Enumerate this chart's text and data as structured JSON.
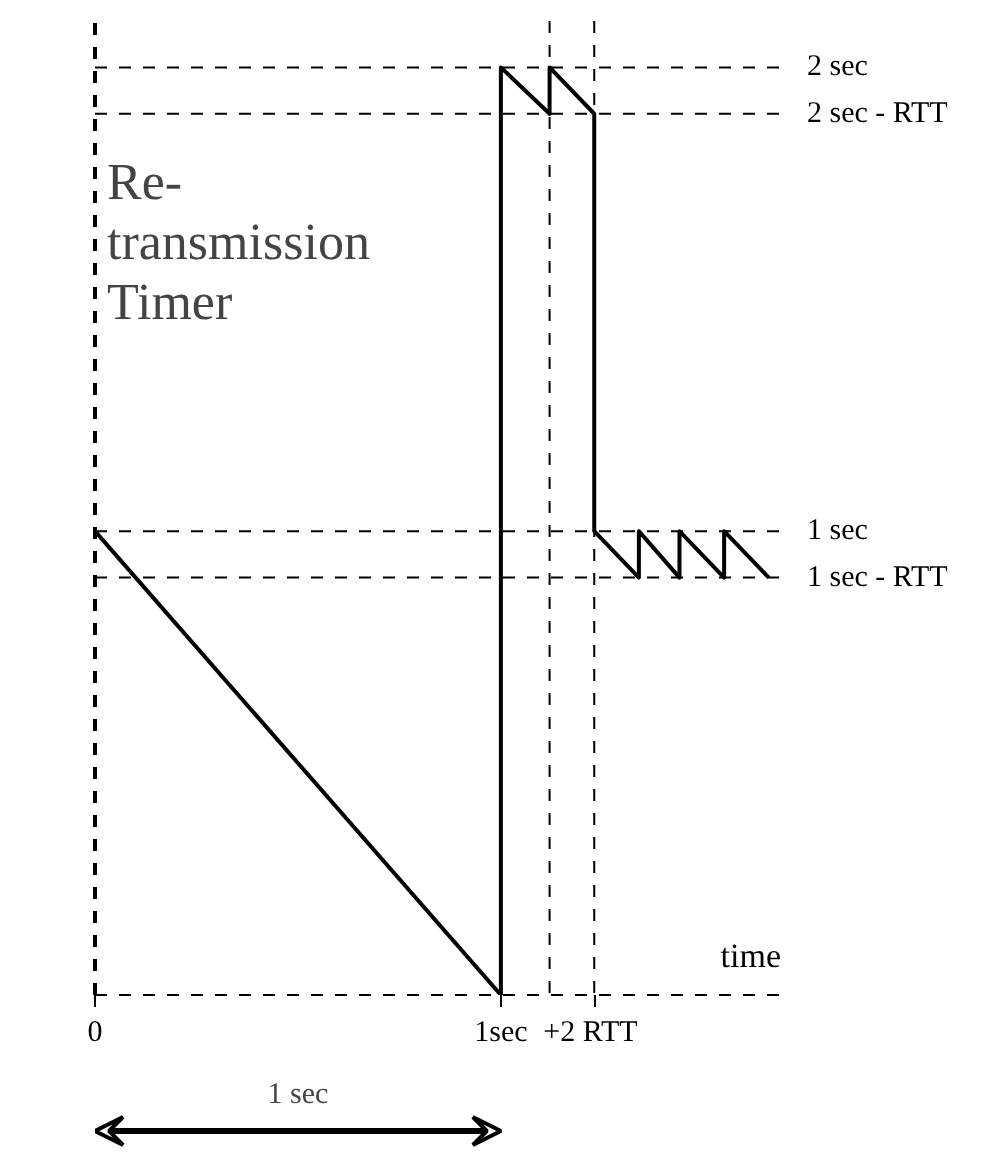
{
  "chart_data": {
    "type": "line",
    "ylabel": "Re-\ntransmission\nTimer",
    "xlabel": "time",
    "x": [
      0,
      1,
      1,
      1.12,
      1.12,
      1.23,
      1.23,
      1.34,
      1.34,
      1.44,
      1.44,
      1.55,
      1.55,
      1.66
    ],
    "series": [
      {
        "color": "#000000",
        "values": [
          1,
          0,
          2,
          1.9,
          2,
          1.9,
          1,
          0.9,
          1,
          0.9,
          1,
          0.9,
          1,
          0.9
        ]
      }
    ],
    "xlim": [
      0,
      1.7
    ],
    "ylim": [
      0,
      2.1
    ],
    "xticks": [
      0,
      {
        "value": 1,
        "label": "1sec"
      }
    ],
    "yticks": [
      {
        "value": 2,
        "label": "2 sec"
      },
      {
        "value": 1.9,
        "label": "2 sec -   RTT"
      },
      {
        "value": 1,
        "label": "1 sec"
      },
      {
        "value": 0.9,
        "label": "1 sec -   RTT"
      }
    ],
    "ref_lines": [
      {
        "axis": "y",
        "value": 2,
        "line_style": "dashed"
      },
      {
        "axis": "y",
        "value": 1.9,
        "line_style": "dashed"
      },
      {
        "axis": "y",
        "value": 1,
        "line_style": "dashed"
      },
      {
        "axis": "y",
        "value": 0.9,
        "line_style": "dashed"
      },
      {
        "axis": "x",
        "value": 1.12,
        "line_style": "dashed"
      },
      {
        "axis": "x",
        "value": 1.23,
        "line_style": "dashed",
        "label": "+2  RTT"
      }
    ],
    "annotations": [
      "1 sec"
    ],
    "grid": false,
    "marker": "none",
    "line_style": "solid"
  }
}
